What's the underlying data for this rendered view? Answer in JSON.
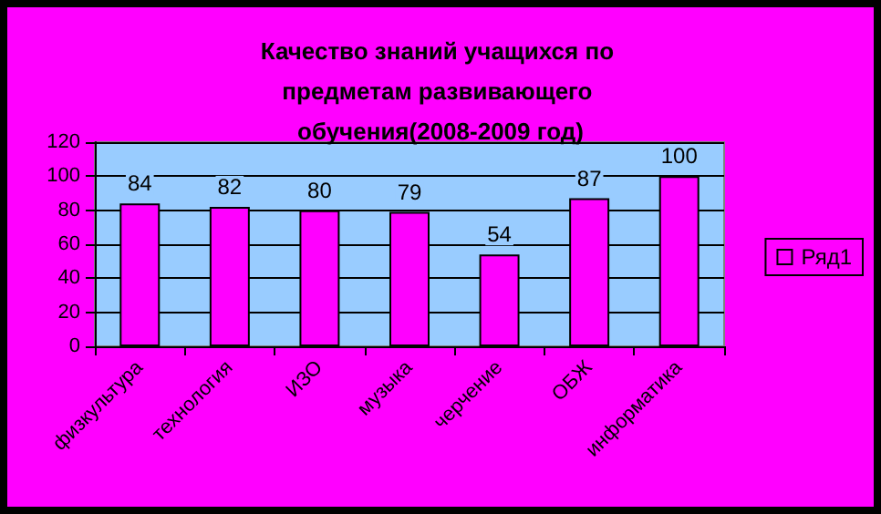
{
  "chart_data": {
    "type": "bar",
    "title": "Качество знаний учащихся по предметам развивающего обучения(2008-2009 год)",
    "categories": [
      "физкультура",
      "технология",
      "ИЗО",
      "музыка",
      "черчение",
      "ОБЖ",
      "информатика"
    ],
    "series": [
      {
        "name": "Ряд1",
        "color": "#ff00ff",
        "values": [
          84,
          82,
          80,
          79,
          54,
          87,
          100
        ]
      }
    ],
    "ylim": [
      0,
      120
    ],
    "yticks": [
      0,
      20,
      40,
      60,
      80,
      100,
      120
    ],
    "grid": "y",
    "legend": "right",
    "data_labels": true
  }
}
